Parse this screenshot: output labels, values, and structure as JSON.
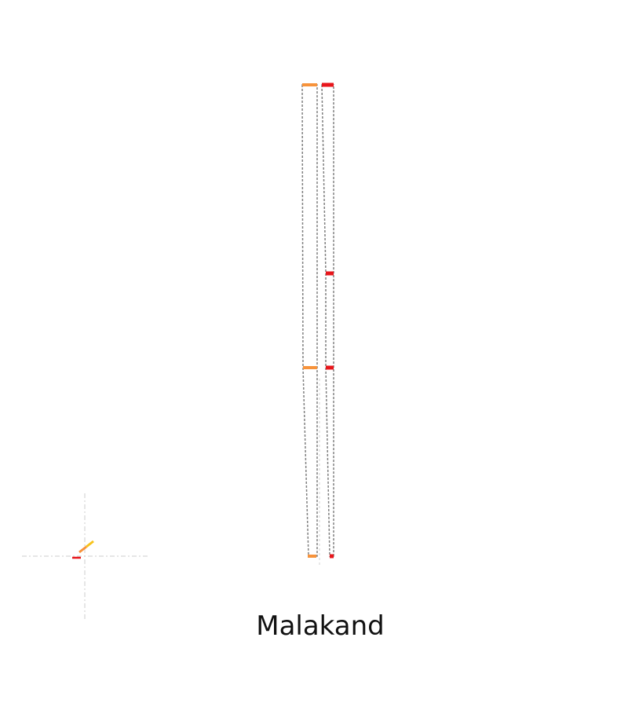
{
  "chart_data": {
    "type": "area",
    "title": "Malakand",
    "xlabel": "",
    "ylabel": "",
    "grid": false,
    "legend": "none",
    "colors": {
      "orange": "#f7933b",
      "red": "#e8161b",
      "yellow": "#f7c31b",
      "outline": "#7f7f7f",
      "baseline": "#d0d0d0",
      "crosshair": "#cccccc",
      "title": "#111111"
    },
    "segments": [
      {
        "color_key": "orange",
        "values": [
          100,
          40,
          0
        ]
      },
      {
        "color_key": "red",
        "values": [
          100,
          60,
          40,
          0
        ]
      }
    ],
    "mini": {
      "values": [
        0,
        1,
        2,
        3
      ]
    }
  }
}
